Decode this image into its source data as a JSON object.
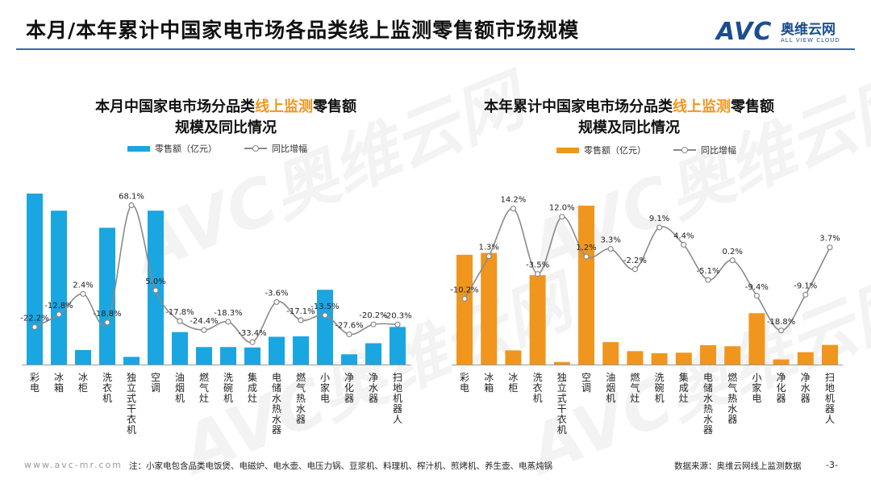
{
  "page": {
    "title": "本月/本年累计中国家电市场各品类线上监测零售额市场规模",
    "logo_mark": "AVC",
    "logo_cn": "奥维云网",
    "logo_en": "ALL VIEW CLOUD",
    "watermark": "AVC奥维云网",
    "footer_site": "www.avc-mr.com",
    "footer_note": "注：小家电包含品类电饭煲、电磁炉、电水壶、电压力锅、豆浆机、料理机、榨汁机、煎烤机、养生壶、电蒸炖锅",
    "footer_source": "数据来源：奥维云网线上监测数据",
    "page_number": "-3-"
  },
  "chart_data": [
    {
      "type": "bar",
      "title_part1": "本月中国家电市场分品类",
      "title_highlight": "线上监测",
      "title_part2": "零售额",
      "title_line2": "规模及同比情况",
      "legend_bar": "零售额（亿元）",
      "legend_line": "同比增幅",
      "bar_color": "#1aa6e0",
      "line_color": "#8a8a8a",
      "categories": [
        "彩电",
        "冰箱",
        "冰柜",
        "洗衣机",
        "独立式干衣机",
        "空调",
        "油烟机",
        "燃气灶",
        "洗碗机",
        "集成灶",
        "电储水热水器",
        "燃气热水器",
        "小家电",
        "净化器",
        "净水器",
        "扫地机器人"
      ],
      "values": [
        40,
        36,
        3.4,
        32,
        1.8,
        36,
        7.6,
        4.1,
        4.1,
        4.0,
        6.5,
        6.6,
        17.5,
        2.4,
        5.0,
        8.8
      ],
      "growth": [
        -22.2,
        -12.8,
        2.4,
        -18.8,
        68.1,
        5.0,
        -17.8,
        -24.4,
        -18.3,
        -33.4,
        -3.6,
        -17.1,
        -13.5,
        -27.6,
        -20.2,
        -20.3
      ],
      "growth_labels": [
        "-22.2%",
        "-12.8%",
        "2.4%",
        "-18.8%",
        "68.1%",
        "5.0%",
        "-17.8%",
        "-24.4%",
        "-18.3%",
        "-33.4%",
        "-3.6%",
        "-17.1%",
        "-13.5%",
        "-27.6%",
        "-20.2%",
        "-20.3%"
      ],
      "growth_range": [
        -50,
        72
      ]
    },
    {
      "type": "bar",
      "title_part1": "本年累计中国家电市场分品类",
      "title_highlight": "线上监测",
      "title_part2": "零售额",
      "title_line2": "规模及同比情况",
      "legend_bar": "零售额（亿元）",
      "legend_line": "同比增幅",
      "bar_color": "#f0961e",
      "line_color": "#8a8a8a",
      "categories": [
        "彩电",
        "冰箱",
        "冰柜",
        "洗衣机",
        "独立式干衣机",
        "空调",
        "油烟机",
        "燃气灶",
        "洗碗机",
        "集成灶",
        "电储水热水器",
        "燃气热水器",
        "小家电",
        "净化器",
        "净水器",
        "扫地机器人"
      ],
      "values": [
        425,
        432,
        55,
        346,
        10,
        615,
        87,
        52,
        44,
        46,
        75,
        71,
        199,
        20,
        48,
        76
      ],
      "growth": [
        -10.2,
        1.3,
        14.2,
        -3.5,
        12.0,
        1.2,
        3.3,
        -2.2,
        9.1,
        4.4,
        -5.1,
        0.2,
        -9.4,
        -18.8,
        -9.1,
        3.7
      ],
      "growth_labels": [
        "-10.2%",
        "1.3%",
        "14.2%",
        "-3.5%",
        "12.0%",
        "1.2%",
        "3.3%",
        "-2.2%",
        "9.1%",
        "4.4%",
        "-5.1%",
        "0.2%",
        "-9.4%",
        "-18.8%",
        "-9.1%",
        "3.7%"
      ],
      "growth_range": [
        -28,
        20
      ]
    }
  ]
}
